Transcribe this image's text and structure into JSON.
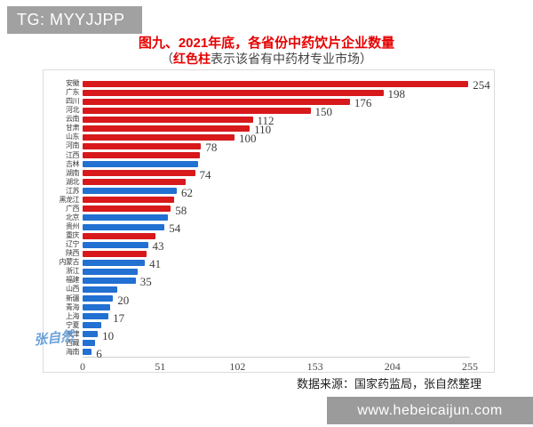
{
  "badge": {
    "text": "TG: MYYJJPP"
  },
  "title": "图九、2021年底，各省份中药饮片企业数量",
  "subtitle": {
    "prefix": "（",
    "highlight": "红色柱",
    "rest": "表示该省有中药材专业市场）"
  },
  "colors": {
    "red_bar": "#d7191c",
    "blue_bar": "#2170d2",
    "title_red": "#e60000",
    "banner_gray": "#9b9b9b",
    "badge_gray": "#a1a1a1"
  },
  "chart_data": {
    "type": "bar",
    "orientation": "horizontal",
    "title": "图九、2021年底，各省份中药饮片企业数量",
    "note": "红色柱表示该省有中药材专业市场",
    "xlim": [
      0,
      255
    ],
    "x_ticks": [
      0,
      51,
      102,
      153,
      204,
      255
    ],
    "grid": false,
    "provinces": [
      {
        "name": "安徽",
        "value": 254,
        "color": "red",
        "label": "254"
      },
      {
        "name": "广东",
        "value": 198,
        "color": "red",
        "label": "198"
      },
      {
        "name": "四川",
        "value": 176,
        "color": "red",
        "label": "176"
      },
      {
        "name": "河北",
        "value": 150,
        "color": "red",
        "label": "150"
      },
      {
        "name": "云南",
        "value": 112,
        "color": "red",
        "label": "112"
      },
      {
        "name": "甘肃",
        "value": 110,
        "color": "red",
        "label": "110"
      },
      {
        "name": "山东",
        "value": 100,
        "color": "red",
        "label": "100"
      },
      {
        "name": "河南",
        "value": 78,
        "color": "red",
        "label": "78"
      },
      {
        "name": "江西",
        "value": 77,
        "color": "red",
        "label": ""
      },
      {
        "name": "吉林",
        "value": 76,
        "color": "blue",
        "label": ""
      },
      {
        "name": "湖南",
        "value": 74,
        "color": "red",
        "label": "74"
      },
      {
        "name": "湖北",
        "value": 68,
        "color": "red",
        "label": ""
      },
      {
        "name": "江苏",
        "value": 62,
        "color": "blue",
        "label": "62"
      },
      {
        "name": "黑龙江",
        "value": 60,
        "color": "red",
        "label": ""
      },
      {
        "name": "广西",
        "value": 58,
        "color": "red",
        "label": "58"
      },
      {
        "name": "北京",
        "value": 56,
        "color": "blue",
        "label": ""
      },
      {
        "name": "贵州",
        "value": 54,
        "color": "blue",
        "label": "54"
      },
      {
        "name": "重庆",
        "value": 48,
        "color": "red",
        "label": ""
      },
      {
        "name": "辽宁",
        "value": 43,
        "color": "blue",
        "label": "43"
      },
      {
        "name": "陕西",
        "value": 42,
        "color": "red",
        "label": ""
      },
      {
        "name": "内蒙古",
        "value": 41,
        "color": "blue",
        "label": "41"
      },
      {
        "name": "浙江",
        "value": 36,
        "color": "blue",
        "label": ""
      },
      {
        "name": "福建",
        "value": 35,
        "color": "blue",
        "label": "35"
      },
      {
        "name": "山西",
        "value": 23,
        "color": "blue",
        "label": ""
      },
      {
        "name": "新疆",
        "value": 20,
        "color": "blue",
        "label": "20"
      },
      {
        "name": "青海",
        "value": 18,
        "color": "blue",
        "label": ""
      },
      {
        "name": "上海",
        "value": 17,
        "color": "blue",
        "label": "17"
      },
      {
        "name": "宁夏",
        "value": 12,
        "color": "blue",
        "label": ""
      },
      {
        "name": "天津",
        "value": 10,
        "color": "blue",
        "label": "10"
      },
      {
        "name": "西藏",
        "value": 8,
        "color": "blue",
        "label": ""
      },
      {
        "name": "海南",
        "value": 6,
        "color": "blue",
        "label": "6"
      }
    ]
  },
  "source_note": "数据来源：国家药监局，张自然整理",
  "watermark": "张自然",
  "footer_banner": "www.hebeicaijun.com"
}
